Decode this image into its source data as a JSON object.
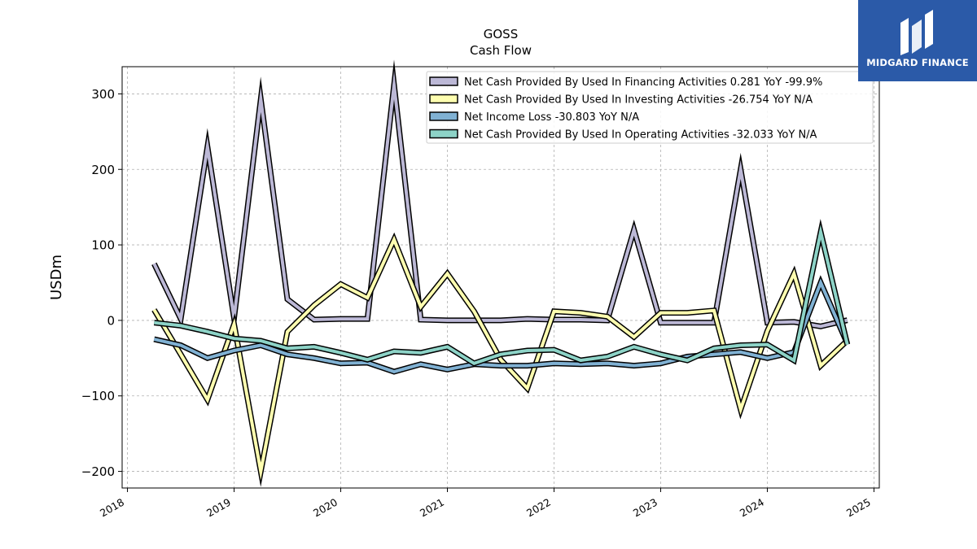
{
  "brand": {
    "name": "MIDGARD FINANCE",
    "color": "#2b5aa8"
  },
  "chart_data": {
    "type": "line",
    "title": "GOSS",
    "subtitle": "Cash Flow",
    "xlabel": "",
    "ylabel": "USDm",
    "xlim": [
      2017.95,
      2025.05
    ],
    "ylim": [
      -222,
      336
    ],
    "x_ticks": [
      "2018",
      "2019",
      "2020",
      "2021",
      "2022",
      "2023",
      "2024",
      "2025"
    ],
    "y_ticks": [
      -200,
      -100,
      0,
      100,
      200,
      300
    ],
    "y_tick_labels": [
      "−200",
      "−100",
      "0",
      "100",
      "200",
      "300"
    ],
    "grid": true,
    "legend_position": "top-right",
    "x": [
      2018.25,
      2018.5,
      2018.75,
      2019.0,
      2019.25,
      2019.5,
      2019.75,
      2020.0,
      2020.25,
      2020.5,
      2020.75,
      2021.0,
      2021.25,
      2021.5,
      2021.75,
      2022.0,
      2022.25,
      2022.5,
      2022.75,
      2023.0,
      2023.25,
      2023.5,
      2023.75,
      2024.0,
      2024.25,
      2024.5,
      2024.75
    ],
    "series": [
      {
        "name": "Net Cash Provided By Used In Financing Activities",
        "legend_label": "Net Cash Provided By Used In Financing Activities  0.281 YoY -99.9%",
        "color": "#bcb8d6",
        "values": [
          75,
          2,
          230,
          3,
          293,
          28,
          1,
          2,
          2,
          312,
          1,
          0,
          0,
          0,
          2,
          1,
          1,
          0,
          120,
          -3,
          -3,
          -3,
          200,
          -3,
          -2,
          -8,
          0.28
        ]
      },
      {
        "name": "Net Cash Provided By Used In Investing Activities",
        "legend_label": "Net Cash Provided By Used In Investing Activities  -26.754 YoY N/A",
        "color": "#ffffb0",
        "values": [
          14,
          -45,
          -105,
          -5,
          -200,
          -15,
          20,
          48,
          30,
          107,
          18,
          62,
          12,
          -52,
          -90,
          12,
          10,
          5,
          -22,
          10,
          10,
          13,
          -118,
          -14,
          62,
          -60,
          -26.75
        ]
      },
      {
        "name": "Net Income Loss",
        "legend_label": "Net Income Loss  -30.803 YoY N/A",
        "color": "#80b1d3",
        "values": [
          -25,
          -33,
          -50,
          -40,
          -33,
          -45,
          -50,
          -57,
          -56,
          -68,
          -58,
          -65,
          -58,
          -60,
          -60,
          -57,
          -58,
          -57,
          -60,
          -57,
          -48,
          -45,
          -42,
          -50,
          -42,
          50,
          -30.8
        ]
      },
      {
        "name": "Net Cash Provided By Used In Operating Activities",
        "legend_label": "Net Cash Provided By Used In Operating Activities  -32.033 YoY N/A",
        "color": "#8dd3c7",
        "values": [
          -3,
          -7,
          -15,
          -24,
          -27,
          -37,
          -35,
          -43,
          -52,
          -41,
          -43,
          -35,
          -57,
          -45,
          -40,
          -39,
          -53,
          -48,
          -35,
          -45,
          -53,
          -37,
          -33,
          -32,
          -53,
          117,
          -32.03
        ]
      }
    ]
  }
}
